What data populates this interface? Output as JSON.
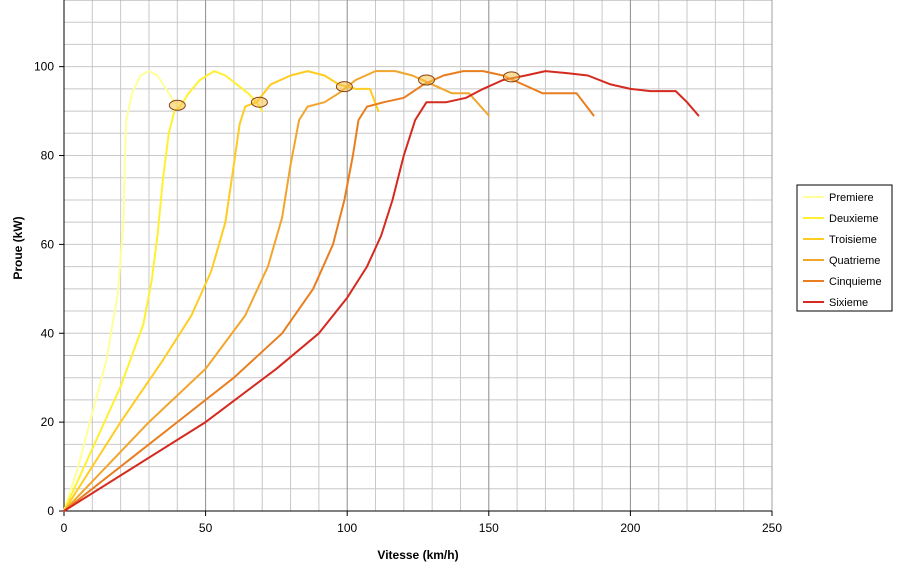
{
  "chart_data": {
    "type": "line",
    "title": "",
    "xlabel": "Vitesse (km/h)",
    "ylabel": "Proue (kW)",
    "xlim": [
      0,
      250
    ],
    "ylim": [
      0,
      115
    ],
    "x_ticks": [
      0,
      50,
      100,
      150,
      200,
      250
    ],
    "y_ticks": [
      0,
      20,
      40,
      60,
      80,
      100
    ],
    "x_major_grid": [
      50,
      100,
      150,
      200
    ],
    "grid": true,
    "legend_position": "right",
    "series": [
      {
        "name": "Premiere",
        "color": "#FFFF99",
        "points": [
          [
            0,
            0
          ],
          [
            5,
            10
          ],
          [
            10,
            22
          ],
          [
            15,
            34
          ],
          [
            19,
            49
          ],
          [
            21,
            65
          ],
          [
            21.5,
            80
          ],
          [
            22,
            88
          ],
          [
            24,
            94
          ],
          [
            27,
            98
          ],
          [
            30,
            99
          ],
          [
            33,
            98
          ],
          [
            36,
            95
          ],
          [
            39,
            92
          ],
          [
            41,
            91
          ]
        ]
      },
      {
        "name": "Deuxieme",
        "color": "#FFF033",
        "points": [
          [
            0,
            0
          ],
          [
            10,
            14
          ],
          [
            20,
            28
          ],
          [
            28,
            42
          ],
          [
            31,
            52
          ],
          [
            33,
            62
          ],
          [
            35,
            75
          ],
          [
            37,
            85
          ],
          [
            39,
            90
          ],
          [
            41,
            91
          ],
          [
            44,
            94
          ],
          [
            48,
            97
          ],
          [
            53,
            99
          ],
          [
            57,
            98
          ],
          [
            61,
            96
          ],
          [
            65,
            94
          ],
          [
            68,
            92
          ],
          [
            70,
            90
          ]
        ]
      },
      {
        "name": "Troisieme",
        "color": "#FFCC22",
        "points": [
          [
            0,
            0
          ],
          [
            20,
            20
          ],
          [
            35,
            34
          ],
          [
            45,
            44
          ],
          [
            52,
            54
          ],
          [
            57,
            65
          ],
          [
            60,
            78
          ],
          [
            62,
            87
          ],
          [
            64,
            91
          ],
          [
            68,
            92
          ],
          [
            73,
            96
          ],
          [
            80,
            98
          ],
          [
            86,
            99
          ],
          [
            92,
            98
          ],
          [
            97,
            96
          ],
          [
            103,
            95
          ],
          [
            108,
            95
          ],
          [
            111,
            90
          ]
        ]
      },
      {
        "name": "Quatrieme",
        "color": "#F2A52C",
        "points": [
          [
            0,
            0
          ],
          [
            30,
            20
          ],
          [
            50,
            32
          ],
          [
            64,
            44
          ],
          [
            72,
            55
          ],
          [
            77,
            66
          ],
          [
            80,
            78
          ],
          [
            83,
            88
          ],
          [
            86,
            91
          ],
          [
            92,
            92
          ],
          [
            97,
            94
          ],
          [
            103,
            97
          ],
          [
            110,
            99
          ],
          [
            117,
            99
          ],
          [
            123,
            98
          ],
          [
            130,
            96
          ],
          [
            137,
            94
          ],
          [
            143,
            94
          ],
          [
            150,
            89
          ]
        ]
      },
      {
        "name": "Cinquieme",
        "color": "#E87E20",
        "points": [
          [
            0,
            0
          ],
          [
            40,
            20
          ],
          [
            60,
            30
          ],
          [
            77,
            40
          ],
          [
            88,
            50
          ],
          [
            95,
            60
          ],
          [
            99,
            70
          ],
          [
            102,
            80
          ],
          [
            104,
            88
          ],
          [
            107,
            91
          ],
          [
            113,
            92
          ],
          [
            120,
            93
          ],
          [
            127,
            96
          ],
          [
            134,
            98
          ],
          [
            141,
            99
          ],
          [
            148,
            99
          ],
          [
            155,
            98
          ],
          [
            162,
            96
          ],
          [
            169,
            94
          ],
          [
            176,
            94
          ],
          [
            181,
            94
          ],
          [
            187,
            89
          ]
        ]
      },
      {
        "name": "Sixieme",
        "color": "#D42A1F",
        "points": [
          [
            0,
            0
          ],
          [
            50,
            20
          ],
          [
            75,
            32
          ],
          [
            90,
            40
          ],
          [
            100,
            48
          ],
          [
            107,
            55
          ],
          [
            112,
            62
          ],
          [
            116,
            70
          ],
          [
            120,
            80
          ],
          [
            124,
            88
          ],
          [
            128,
            92
          ],
          [
            135,
            92
          ],
          [
            142,
            93
          ],
          [
            148,
            95
          ],
          [
            155,
            97
          ],
          [
            163,
            98
          ],
          [
            170,
            99
          ],
          [
            178,
            98.5
          ],
          [
            185,
            98
          ],
          [
            193,
            96
          ],
          [
            200,
            95
          ],
          [
            207,
            94.5
          ],
          [
            212,
            94.5
          ],
          [
            216,
            94.5
          ],
          [
            220,
            92
          ],
          [
            224,
            89
          ]
        ]
      }
    ],
    "shift_points": [
      {
        "x": 40,
        "y": 91.3
      },
      {
        "x": 69,
        "y": 92
      },
      {
        "x": 99,
        "y": 95.5
      },
      {
        "x": 128,
        "y": 97
      },
      {
        "x": 158,
        "y": 97.7
      }
    ]
  }
}
